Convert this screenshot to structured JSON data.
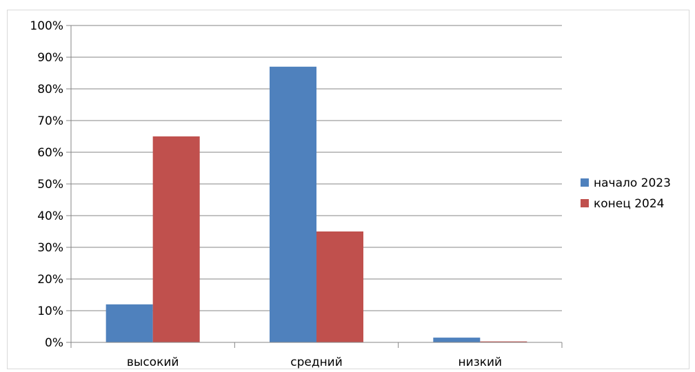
{
  "chart_data": {
    "type": "bar",
    "title": "",
    "xlabel": "",
    "ylabel": "",
    "categories": [
      "высокий",
      "средний",
      "низкий"
    ],
    "series": [
      {
        "name": "начало 2023",
        "values": [
          12,
          87,
          1.5
        ],
        "color": "#4f81bd"
      },
      {
        "name": "конец 2024",
        "values": [
          65,
          35,
          0.3
        ],
        "color": "#c0504d"
      }
    ],
    "ylim": [
      0,
      100
    ],
    "y_ticks": [
      0,
      10,
      20,
      30,
      40,
      50,
      60,
      70,
      80,
      90,
      100
    ],
    "y_tick_labels": [
      "0%",
      "10%",
      "20%",
      "30%",
      "40%",
      "50%",
      "60%",
      "70%",
      "80%",
      "90%",
      "100%"
    ],
    "grid": true,
    "legend_position": "right"
  }
}
